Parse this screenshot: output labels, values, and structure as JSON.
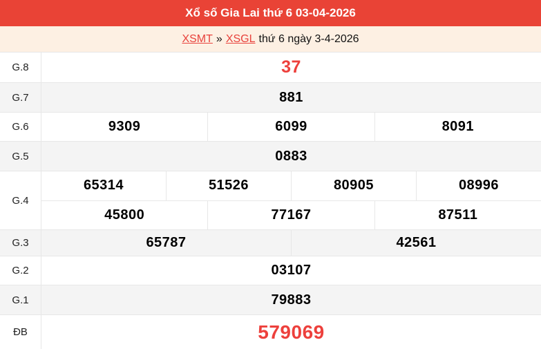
{
  "banner": {
    "title": "Xổ số Gia Lai thứ 6 03-04-2026"
  },
  "breadcrumb": {
    "link1": "XSMT",
    "separator": "»",
    "link2": "XSGL",
    "suffix": "thứ 6 ngày 3-4-2026"
  },
  "colors": {
    "banner_bg": "#e94336",
    "accent_red": "#ed403c",
    "breadcrumb_bg": "#fdf0e3",
    "row_alt_bg": "#f4f4f4",
    "border": "#e7e7e7"
  },
  "results": {
    "rows": [
      {
        "label": "G.8",
        "groups": [
          [
            "37"
          ]
        ]
      },
      {
        "label": "G.7",
        "groups": [
          [
            "881"
          ]
        ]
      },
      {
        "label": "G.6",
        "groups": [
          [
            "9309",
            "6099",
            "8091"
          ]
        ]
      },
      {
        "label": "G.5",
        "groups": [
          [
            "0883"
          ]
        ]
      },
      {
        "label": "G.4",
        "groups": [
          [
            "65314",
            "51526",
            "80905",
            "08996"
          ],
          [
            "45800",
            "77167",
            "87511"
          ]
        ]
      },
      {
        "label": "G.3",
        "groups": [
          [
            "65787",
            "42561"
          ]
        ]
      },
      {
        "label": "G.2",
        "groups": [
          [
            "03107"
          ]
        ]
      },
      {
        "label": "G.1",
        "groups": [
          [
            "79883"
          ]
        ]
      },
      {
        "label": "ĐB",
        "groups": [
          [
            "579069"
          ]
        ]
      }
    ]
  }
}
